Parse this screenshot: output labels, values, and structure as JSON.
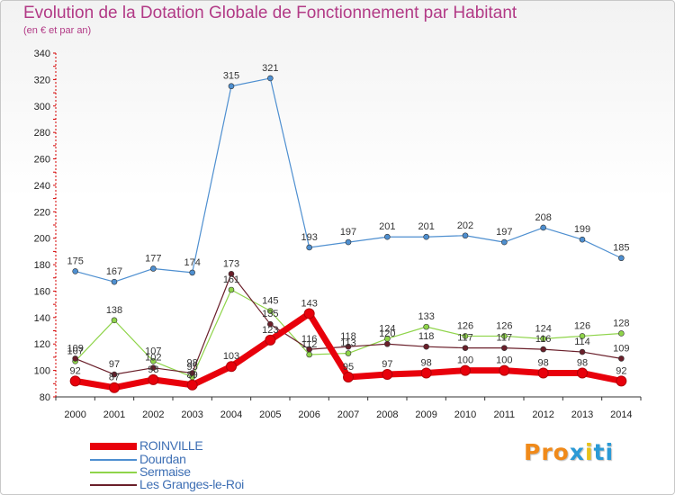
{
  "title": "Evolution de la Dotation Globale de Fonctionnement par Habitant",
  "subtitle": "(en € et par an)",
  "logo_text": "Proxiti",
  "chart_data": {
    "type": "line",
    "x": [
      "2000",
      "2001",
      "2002",
      "2003",
      "2004",
      "2005",
      "2006",
      "2007",
      "2008",
      "2009",
      "2010",
      "2011",
      "2012",
      "2013",
      "2014"
    ],
    "ylim": [
      80,
      340
    ],
    "yticks": [
      80,
      100,
      120,
      140,
      160,
      180,
      200,
      220,
      240,
      260,
      280,
      300,
      320,
      340
    ],
    "grid": false,
    "legend_position": "bottom-left",
    "series": [
      {
        "name": "ROINVILLE",
        "color": "#e8000b",
        "values": [
          92,
          87,
          93,
          89,
          103,
          123,
          143,
          95,
          97,
          98,
          100,
          100,
          98,
          98,
          92
        ]
      },
      {
        "name": "Dourdan",
        "color": "#4e8fd0",
        "values": [
          175,
          167,
          177,
          174,
          315,
          321,
          193,
          197,
          201,
          201,
          202,
          197,
          208,
          199,
          185
        ]
      },
      {
        "name": "Sermaise",
        "color": "#8fd44a",
        "values": [
          107,
          138,
          107,
          95,
          161,
          145,
          112,
          113,
          124,
          133,
          126,
          126,
          124,
          126,
          128
        ]
      },
      {
        "name": "Les Granges-le-Roi",
        "color": "#6a1f2a",
        "values": [
          109,
          97,
          102,
          98,
          173,
          135,
          116,
          118,
          120,
          118,
          117,
          117,
          116,
          114,
          109
        ]
      }
    ],
    "data_labels": {
      "ROINVILLE": [
        "92",
        "87",
        "93",
        "89",
        "103",
        "123",
        "143",
        "95",
        "97",
        "98",
        "100",
        "100",
        "98",
        "98",
        "92"
      ],
      "Dourdan": [
        "175",
        "167",
        "177",
        "174",
        "315",
        "321",
        "193",
        "197",
        "201",
        "201",
        "202",
        "197",
        "208",
        "199",
        "185"
      ],
      "Sermaise": [
        "107",
        "138",
        "107",
        "95",
        "161",
        "145",
        "112",
        "113",
        "124",
        "133",
        "126",
        "126",
        "124",
        "126",
        "128"
      ],
      "Les Granges-le-Roi": [
        "109",
        "97",
        "102",
        "98",
        "173",
        "135",
        "116",
        "118",
        "120",
        "118",
        "117",
        "117",
        "116",
        "114",
        "109"
      ]
    }
  }
}
